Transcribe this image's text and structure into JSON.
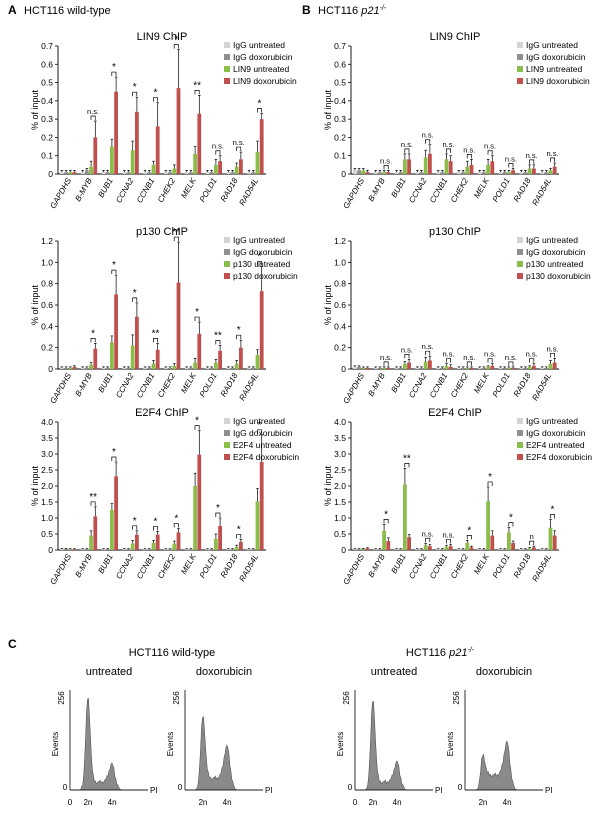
{
  "colors": {
    "igg_untreated": "#d4d4d4",
    "igg_doxo": "#8f8f8f",
    "chip_untreated": "#8bbd4a",
    "chip_doxo": "#c0504d",
    "histogram": "#8a8a8a"
  },
  "panels": {
    "A": {
      "label": "A",
      "title": "HCT116 wild-type"
    },
    "B": {
      "label": "B",
      "title_prefix": "HCT116 ",
      "title_gene": "p21",
      "title_sup": "-/-"
    },
    "C": {
      "label": "C"
    }
  },
  "genes": [
    "GAPDHS",
    "B-MYB",
    "BUB1",
    "CCNA2",
    "CCNB1",
    "CHEK2",
    "MELK",
    "POLD1",
    "RAD18",
    "RAD54L"
  ],
  "ylabel": "% of input",
  "chart_data": [
    {
      "id": "lin9-wt",
      "type": "bar",
      "title": "LIN9 ChIP",
      "ylim": [
        0,
        0.7
      ],
      "ticks": [
        "0",
        "0.1",
        "0.2",
        "0.3",
        "0.4",
        "0.5",
        "0.6",
        "0.7"
      ],
      "series": [
        {
          "name": "IgG untreated",
          "values": [
            0.01,
            0.01,
            0.01,
            0.01,
            0.01,
            0.01,
            0.01,
            0.01,
            0.01,
            0.01
          ],
          "err": [
            0.01,
            0.01,
            0.01,
            0.01,
            0.01,
            0.01,
            0.01,
            0.01,
            0.01,
            0.01
          ]
        },
        {
          "name": "IgG doxorubicin",
          "values": [
            0.01,
            0.02,
            0.01,
            0.01,
            0.01,
            0.01,
            0.01,
            0.01,
            0.01,
            0.01
          ],
          "err": [
            0.01,
            0.01,
            0.01,
            0.01,
            0.01,
            0.01,
            0.01,
            0.01,
            0.01,
            0.01
          ]
        },
        {
          "name": "LIN9 untreated",
          "values": [
            0.01,
            0.04,
            0.15,
            0.13,
            0.05,
            0.03,
            0.11,
            0.05,
            0.04,
            0.12
          ],
          "err": [
            0.01,
            0.03,
            0.04,
            0.05,
            0.02,
            0.02,
            0.04,
            0.03,
            0.02,
            0.06
          ]
        },
        {
          "name": "LIN9 doxorubicin",
          "values": [
            0.01,
            0.2,
            0.45,
            0.34,
            0.26,
            0.47,
            0.33,
            0.07,
            0.08,
            0.3
          ],
          "err": [
            0.01,
            0.09,
            0.08,
            0.08,
            0.13,
            0.21,
            0.1,
            0.03,
            0.04,
            0.03
          ]
        }
      ],
      "sig": [
        "",
        "n.s.",
        "*",
        "*",
        "*",
        "*",
        "**",
        "n.s.",
        "n.s.",
        "*"
      ]
    },
    {
      "id": "lin9-ko",
      "type": "bar",
      "title": "LIN9 ChIP",
      "ylim": [
        0,
        0.7
      ],
      "ticks": [
        "0",
        "0.1",
        "0.2",
        "0.3",
        "0.4",
        "0.5",
        "0.6",
        "0.7"
      ],
      "series": [
        {
          "name": "IgG untreated",
          "values": [
            0.02,
            0.01,
            0.01,
            0.01,
            0.01,
            0.01,
            0.01,
            0.01,
            0.01,
            0.01
          ],
          "err": [
            0.01,
            0.01,
            0.01,
            0.01,
            0.01,
            0.01,
            0.01,
            0.01,
            0.01,
            0.01
          ]
        },
        {
          "name": "IgG doxorubicin",
          "values": [
            0.02,
            0.01,
            0.01,
            0.01,
            0.01,
            0.01,
            0.01,
            0.01,
            0.01,
            0.01
          ],
          "err": [
            0.01,
            0.01,
            0.01,
            0.01,
            0.01,
            0.01,
            0.01,
            0.01,
            0.01,
            0.01
          ]
        },
        {
          "name": "LIN9 untreated",
          "values": [
            0.02,
            0.01,
            0.08,
            0.09,
            0.08,
            0.04,
            0.05,
            0.01,
            0.03,
            0.02
          ],
          "err": [
            0.01,
            0.01,
            0.03,
            0.04,
            0.03,
            0.03,
            0.03,
            0.01,
            0.02,
            0.01
          ]
        },
        {
          "name": "LIN9 doxorubicin",
          "values": [
            0.01,
            0.01,
            0.08,
            0.11,
            0.07,
            0.05,
            0.07,
            0.02,
            0.03,
            0.04
          ],
          "err": [
            0.01,
            0.01,
            0.03,
            0.05,
            0.03,
            0.03,
            0.03,
            0.01,
            0.02,
            0.02
          ]
        }
      ],
      "sig": [
        "",
        "n.s.",
        "n.s.",
        "n.s.",
        "n.s.",
        "n.s.",
        "n.s.",
        "n.s.",
        "n.s.",
        "n.s."
      ]
    },
    {
      "id": "p130-wt",
      "type": "bar",
      "title": "p130 ChIP",
      "ylim": [
        0,
        1.2
      ],
      "ticks": [
        "0",
        "0.2",
        "0.4",
        "0.6",
        "0.8",
        "1.0",
        "1.2"
      ],
      "series": [
        {
          "name": "IgG untreated",
          "values": [
            0.01,
            0.01,
            0.01,
            0.01,
            0.01,
            0.01,
            0.01,
            0.01,
            0.01,
            0.01
          ],
          "err": [
            0.01,
            0.01,
            0.01,
            0.01,
            0.01,
            0.01,
            0.01,
            0.01,
            0.01,
            0.01
          ]
        },
        {
          "name": "IgG doxorubicin",
          "values": [
            0.01,
            0.01,
            0.01,
            0.01,
            0.01,
            0.01,
            0.01,
            0.01,
            0.01,
            0.01
          ],
          "err": [
            0.01,
            0.01,
            0.01,
            0.01,
            0.01,
            0.01,
            0.01,
            0.01,
            0.01,
            0.01
          ]
        },
        {
          "name": "p130 untreated",
          "values": [
            0.01,
            0.04,
            0.25,
            0.22,
            0.05,
            0.03,
            0.06,
            0.06,
            0.05,
            0.13
          ],
          "err": [
            0.01,
            0.02,
            0.06,
            0.1,
            0.03,
            0.02,
            0.04,
            0.03,
            0.03,
            0.05
          ]
        },
        {
          "name": "p130 doxorubicin",
          "values": [
            0.02,
            0.19,
            0.7,
            0.49,
            0.18,
            0.81,
            0.33,
            0.17,
            0.2,
            0.73
          ],
          "err": [
            0.01,
            0.05,
            0.18,
            0.13,
            0.06,
            0.38,
            0.11,
            0.05,
            0.07,
            0.23
          ]
        }
      ],
      "sig": [
        "",
        "*",
        "*",
        "*",
        "**",
        "**",
        "*",
        "**",
        "*",
        "*"
      ]
    },
    {
      "id": "p130-ko",
      "type": "bar",
      "title": "p130 ChIP",
      "ylim": [
        0,
        1.2
      ],
      "ticks": [
        "0",
        "0.2",
        "0.4",
        "0.6",
        "0.8",
        "1.0",
        "1.2"
      ],
      "series": [
        {
          "name": "IgG untreated",
          "values": [
            0.02,
            0.01,
            0.01,
            0.01,
            0.01,
            0.01,
            0.01,
            0.01,
            0.01,
            0.01
          ],
          "err": [
            0.01,
            0.01,
            0.01,
            0.01,
            0.01,
            0.01,
            0.01,
            0.01,
            0.01,
            0.01
          ]
        },
        {
          "name": "IgG doxorubicin",
          "values": [
            0.02,
            0.01,
            0.01,
            0.01,
            0.01,
            0.01,
            0.01,
            0.01,
            0.01,
            0.01
          ],
          "err": [
            0.01,
            0.01,
            0.01,
            0.01,
            0.01,
            0.01,
            0.01,
            0.01,
            0.01,
            0.01
          ]
        },
        {
          "name": "p130 untreated",
          "values": [
            0.01,
            0.01,
            0.05,
            0.07,
            0.03,
            0.01,
            0.02,
            0.01,
            0.02,
            0.05
          ],
          "err": [
            0.01,
            0.01,
            0.02,
            0.04,
            0.02,
            0.01,
            0.01,
            0.01,
            0.01,
            0.03
          ]
        },
        {
          "name": "p130 doxorubicin",
          "values": [
            0.01,
            0.01,
            0.06,
            0.08,
            0.02,
            0.01,
            0.03,
            0.01,
            0.03,
            0.06
          ],
          "err": [
            0.01,
            0.01,
            0.03,
            0.04,
            0.02,
            0.01,
            0.02,
            0.01,
            0.02,
            0.04
          ]
        }
      ],
      "sig": [
        "",
        "n.s.",
        "n.s.",
        "n.s.",
        "n.s.",
        "n.s.",
        "n.s.",
        "n.s.",
        "n.s.",
        "n.s."
      ]
    },
    {
      "id": "e2f4-wt",
      "type": "bar",
      "title": "E2F4 ChIP",
      "ylim": [
        0,
        4.0
      ],
      "ticks": [
        "0",
        "0.5",
        "1.0",
        "1.5",
        "2.0",
        "2.5",
        "3.0",
        "3.5",
        "4.0"
      ],
      "series": [
        {
          "name": "IgG untreated",
          "values": [
            0.03,
            0.02,
            0.02,
            0.02,
            0.02,
            0.02,
            0.02,
            0.02,
            0.02,
            0.02
          ],
          "err": [
            0.02,
            0.02,
            0.02,
            0.02,
            0.02,
            0.02,
            0.02,
            0.02,
            0.02,
            0.02
          ]
        },
        {
          "name": "IgG doxorubicin",
          "values": [
            0.03,
            0.02,
            0.02,
            0.02,
            0.02,
            0.02,
            0.02,
            0.02,
            0.02,
            0.02
          ],
          "err": [
            0.02,
            0.02,
            0.02,
            0.02,
            0.02,
            0.02,
            0.02,
            0.02,
            0.02,
            0.02
          ]
        },
        {
          "name": "E2F4 untreated",
          "values": [
            0.02,
            0.45,
            1.25,
            0.2,
            0.22,
            0.2,
            2.0,
            0.35,
            0.1,
            1.52
          ],
          "err": [
            0.02,
            0.15,
            0.2,
            0.1,
            0.08,
            0.08,
            0.4,
            0.15,
            0.05,
            0.4
          ]
        },
        {
          "name": "E2F4 doxorubicin",
          "values": [
            0.02,
            1.05,
            2.3,
            0.48,
            0.48,
            0.55,
            2.98,
            0.75,
            0.25,
            2.75
          ],
          "err": [
            0.02,
            0.3,
            0.45,
            0.12,
            0.1,
            0.12,
            0.75,
            0.25,
            0.08,
            0.85
          ]
        }
      ],
      "sig": [
        "",
        "**",
        "*",
        "*",
        "*",
        "*",
        "*",
        "*",
        "*",
        "*"
      ]
    },
    {
      "id": "e2f4-ko",
      "type": "bar",
      "title": "E2F4 ChIP",
      "ylim": [
        0,
        4.0
      ],
      "ticks": [
        "0",
        "0.5",
        "1.0",
        "1.5",
        "2.0",
        "2.5",
        "3.0",
        "3.5",
        "4.0"
      ],
      "series": [
        {
          "name": "IgG untreated",
          "values": [
            0.02,
            0.02,
            0.02,
            0.02,
            0.02,
            0.02,
            0.02,
            0.02,
            0.02,
            0.02
          ],
          "err": [
            0.02,
            0.02,
            0.02,
            0.02,
            0.02,
            0.02,
            0.02,
            0.02,
            0.02,
            0.02
          ]
        },
        {
          "name": "IgG doxorubicin",
          "values": [
            0.02,
            0.02,
            0.02,
            0.02,
            0.02,
            0.02,
            0.02,
            0.02,
            0.02,
            0.02
          ],
          "err": [
            0.02,
            0.02,
            0.02,
            0.02,
            0.02,
            0.02,
            0.02,
            0.02,
            0.02,
            0.02
          ]
        },
        {
          "name": "E2F4 untreated",
          "values": [
            0.03,
            0.6,
            2.05,
            0.15,
            0.1,
            0.22,
            1.52,
            0.55,
            0.05,
            0.7
          ],
          "err": [
            0.02,
            0.2,
            0.5,
            0.06,
            0.05,
            0.08,
            0.45,
            0.15,
            0.03,
            0.25
          ]
        },
        {
          "name": "E2F4 doxorubicin",
          "values": [
            0.05,
            0.28,
            0.4,
            0.12,
            0.12,
            0.08,
            0.45,
            0.22,
            0.08,
            0.45
          ],
          "err": [
            0.02,
            0.1,
            0.08,
            0.05,
            0.05,
            0.04,
            0.15,
            0.06,
            0.04,
            0.15
          ]
        }
      ],
      "sig": [
        "",
        "*",
        "**",
        "n.s.",
        "n.s.",
        "*",
        "*",
        "*",
        "n",
        "*"
      ]
    }
  ],
  "flow": {
    "wt_title": "HCT116 wild-type",
    "ko_title_prefix": "HCT116 ",
    "ko_title_gene": "p21",
    "ko_title_sup": "-/-",
    "ylabel": "Events",
    "ymax_label": "256",
    "y0_label": "0",
    "xlabel": "PI",
    "xticks": [
      "0",
      "2n",
      "4n"
    ],
    "plots": [
      {
        "id": "wt-untreated",
        "label": "untreated",
        "g1": 0.85,
        "s": 0.08,
        "g2": 0.18
      },
      {
        "id": "wt-doxo",
        "label": "doxorubicin",
        "g1": 0.62,
        "s": 0.12,
        "g2": 0.32
      },
      {
        "id": "ko-untreated",
        "label": "untreated",
        "g1": 0.82,
        "s": 0.08,
        "g2": 0.2
      },
      {
        "id": "ko-doxo",
        "label": "doxorubicin",
        "g1": 0.2,
        "s": 0.15,
        "g2": 0.33
      }
    ]
  }
}
